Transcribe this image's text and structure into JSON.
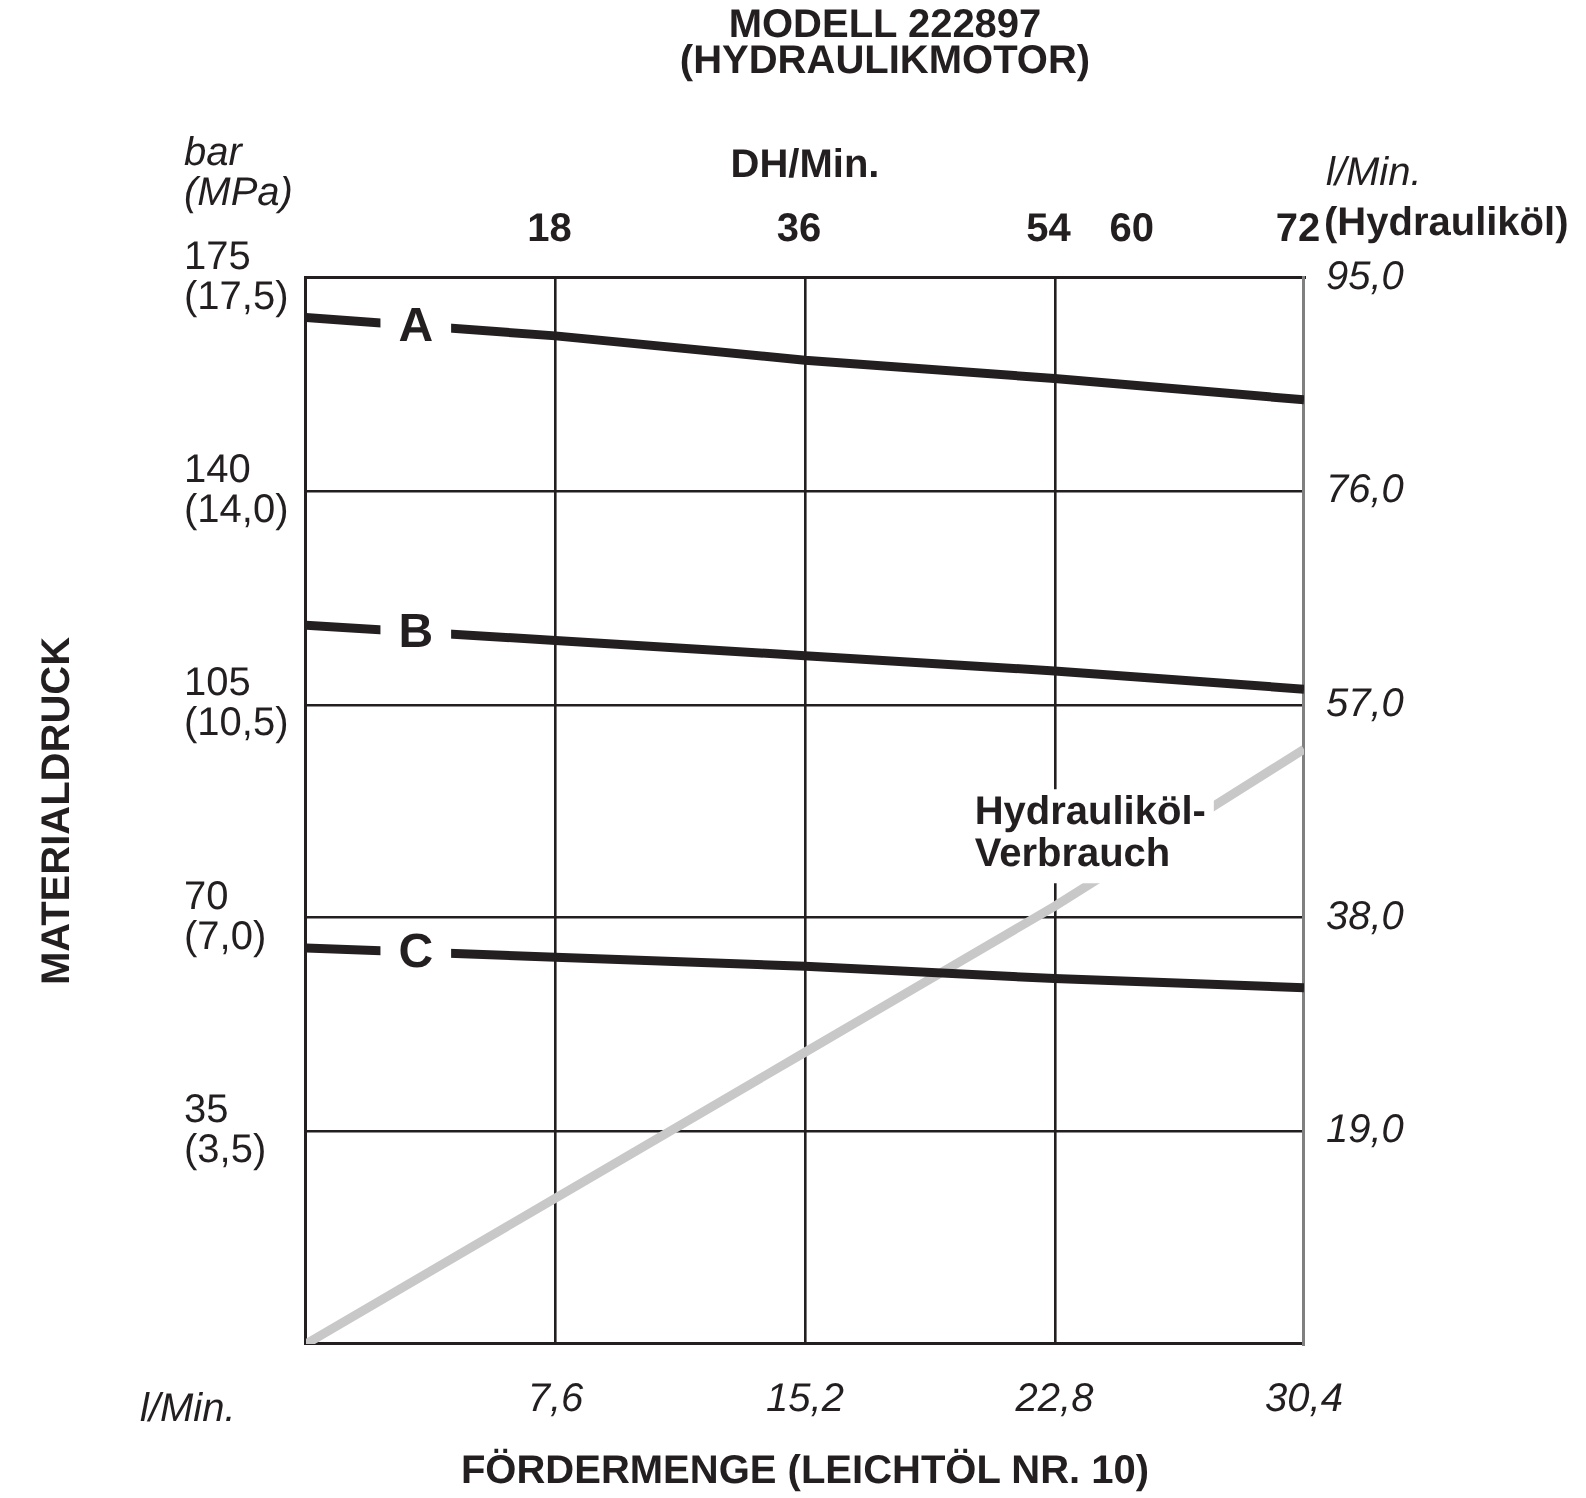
{
  "chart_data": {
    "type": "line",
    "title": "MODELL 222897\n(HYDRAULIKMOTOR)",
    "xlabel": "FÖRDERMENGE (LEICHTÖL NR. 10)",
    "ylabel": "MATERIALDRUCK",
    "y2label": "l/Min.\n(Hydrauliköl)",
    "x2label": "DH/Min.",
    "annotations": [
      "bar\n(MPa)",
      "l/Min."
    ],
    "x": [
      0,
      7.6,
      15.2,
      22.8,
      30.4
    ],
    "series": [
      {
        "name": "A",
        "color": "#231f20",
        "values": [
          168.5,
          165.5,
          161.5,
          158.5,
          155
        ]
      },
      {
        "name": "B",
        "color": "#231f20",
        "values": [
          118,
          115.5,
          113,
          110.5,
          107.5
        ]
      },
      {
        "name": "C",
        "color": "#231f20",
        "values": [
          65,
          63.5,
          62,
          60,
          58.5
        ]
      },
      {
        "name": "Hydrauliköl-Verbrauch",
        "color": "#c8c8c8",
        "axis": "y2",
        "values": [
          0,
          13,
          26,
          39,
          53
        ]
      }
    ],
    "xlim": [
      0,
      30.4
    ],
    "xticks": [
      {
        "value": 7.6,
        "label": "7,6"
      },
      {
        "value": 15.2,
        "label": "15,2"
      },
      {
        "value": 22.8,
        "label": "22,8"
      },
      {
        "value": 30.4,
        "label": "30,4"
      }
    ],
    "ylim": [
      0,
      175
    ],
    "yticks": [
      35,
      70,
      105,
      140,
      175
    ],
    "y3lim": [
      0,
      17.5
    ],
    "y3ticks": [
      {
        "value": 3.5,
        "label": "(3,5)"
      },
      {
        "value": 7,
        "label": "(7,0)"
      },
      {
        "value": 10.5,
        "label": "(10,5)"
      },
      {
        "value": 14,
        "label": "(14,0)"
      },
      {
        "value": 17.5,
        "label": "(17,5)"
      }
    ],
    "y2lim": [
      0,
      95
    ],
    "y2ticks": [
      {
        "value": 19,
        "label": "19,0"
      },
      {
        "value": 38,
        "label": "38,0"
      },
      {
        "value": 57,
        "label": "57,0"
      },
      {
        "value": 76,
        "label": "76,0"
      },
      {
        "value": 95,
        "label": "95,0"
      }
    ],
    "x2lim": [
      0,
      72
    ],
    "x2ticks": [
      18,
      36,
      54,
      60,
      72
    ],
    "grid": true,
    "legend": false,
    "marker": "none",
    "line_style": "solid"
  }
}
